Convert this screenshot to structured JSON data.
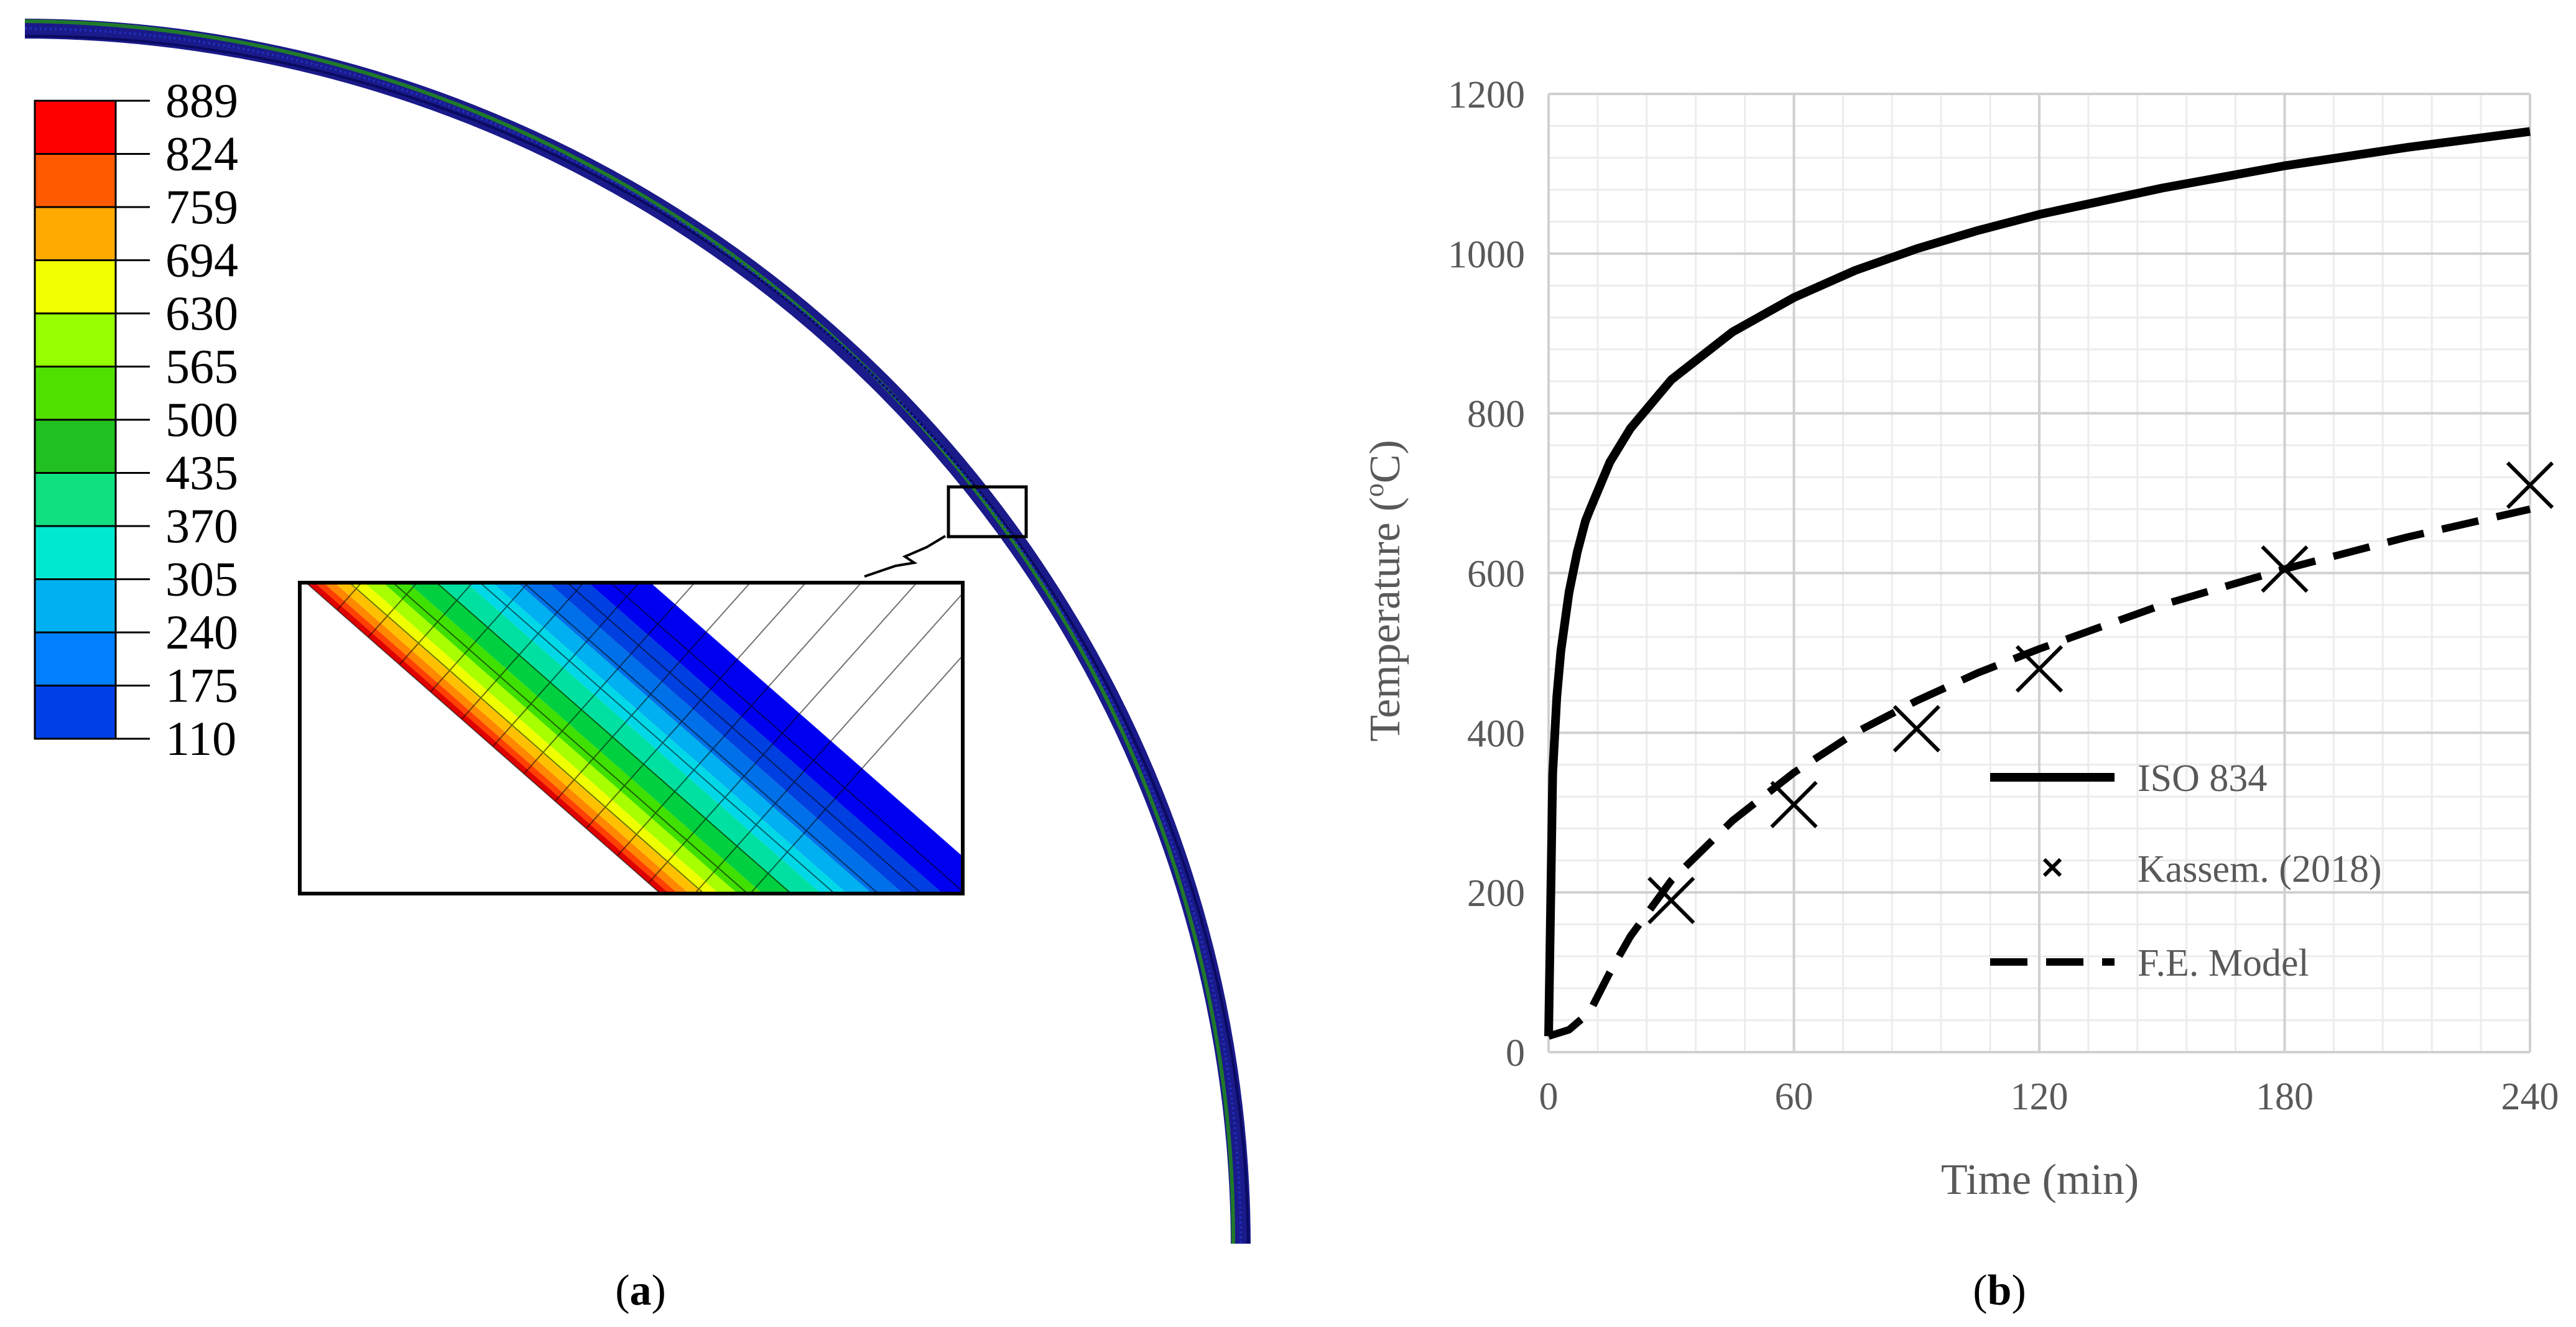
{
  "panel_a": {
    "label_open": "(",
    "label_letter": "a",
    "label_close": ")",
    "contour_legend": {
      "values": [
        "889",
        "824",
        "759",
        "694",
        "630",
        "565",
        "500",
        "435",
        "370",
        "305",
        "240",
        "175",
        "110"
      ],
      "colors": [
        "#ff0000",
        "#ff5a00",
        "#ffaa00",
        "#f0ff00",
        "#96ff00",
        "#50e000",
        "#20c020",
        "#10e080",
        "#00e8d0",
        "#00b0f0",
        "#0080ff",
        "#0040e8",
        "#0000ff"
      ]
    },
    "zoom_colors": [
      "#e00000",
      "#ff4000",
      "#ff8800",
      "#ffc000",
      "#f0ff00",
      "#a8ff00",
      "#40e000",
      "#00d040",
      "#00e0a0",
      "#00d8e8",
      "#00b0f0",
      "#0070e8",
      "#0040e0",
      "#0000f0"
    ]
  },
  "panel_b": {
    "label_open": "(",
    "label_letter": "b",
    "label_close": ")",
    "chart_data": {
      "type": "line",
      "xlabel": "Time (min)",
      "ylabel_prefix": "Temperature (",
      "ylabel_sup": "o",
      "ylabel_suffix": "C)",
      "xlim": [
        0,
        240
      ],
      "ylim": [
        0,
        1200
      ],
      "xticks": [
        0,
        60,
        120,
        180,
        240
      ],
      "yticks": [
        0,
        200,
        400,
        600,
        800,
        1000,
        1200
      ],
      "grid": true,
      "legend_position": "lower-right inside plot",
      "series": [
        {
          "name": "ISO 834",
          "style": "solid",
          "x": [
            0,
            1,
            2,
            3,
            5,
            7,
            9,
            10,
            15,
            20,
            30,
            45,
            60,
            75,
            90,
            105,
            120,
            150,
            180,
            210,
            240
          ],
          "y": [
            20,
            349,
            445,
            502,
            576,
            626,
            665,
            678,
            739,
            781,
            842,
            902,
            945,
            979,
            1006,
            1029,
            1049,
            1082,
            1110,
            1133,
            1153
          ]
        },
        {
          "name": "Kassem. (2018)",
          "style": "x-marker",
          "x": [
            30,
            60,
            90,
            120,
            180,
            240
          ],
          "y": [
            190,
            310,
            405,
            480,
            605,
            710
          ]
        },
        {
          "name": "F.E. Model",
          "style": "dashed",
          "x": [
            0,
            5,
            10,
            15,
            20,
            30,
            45,
            60,
            75,
            90,
            105,
            120,
            150,
            180,
            210,
            240
          ],
          "y": [
            20,
            28,
            50,
            100,
            145,
            215,
            290,
            350,
            400,
            440,
            475,
            505,
            560,
            605,
            645,
            680
          ]
        }
      ]
    }
  }
}
